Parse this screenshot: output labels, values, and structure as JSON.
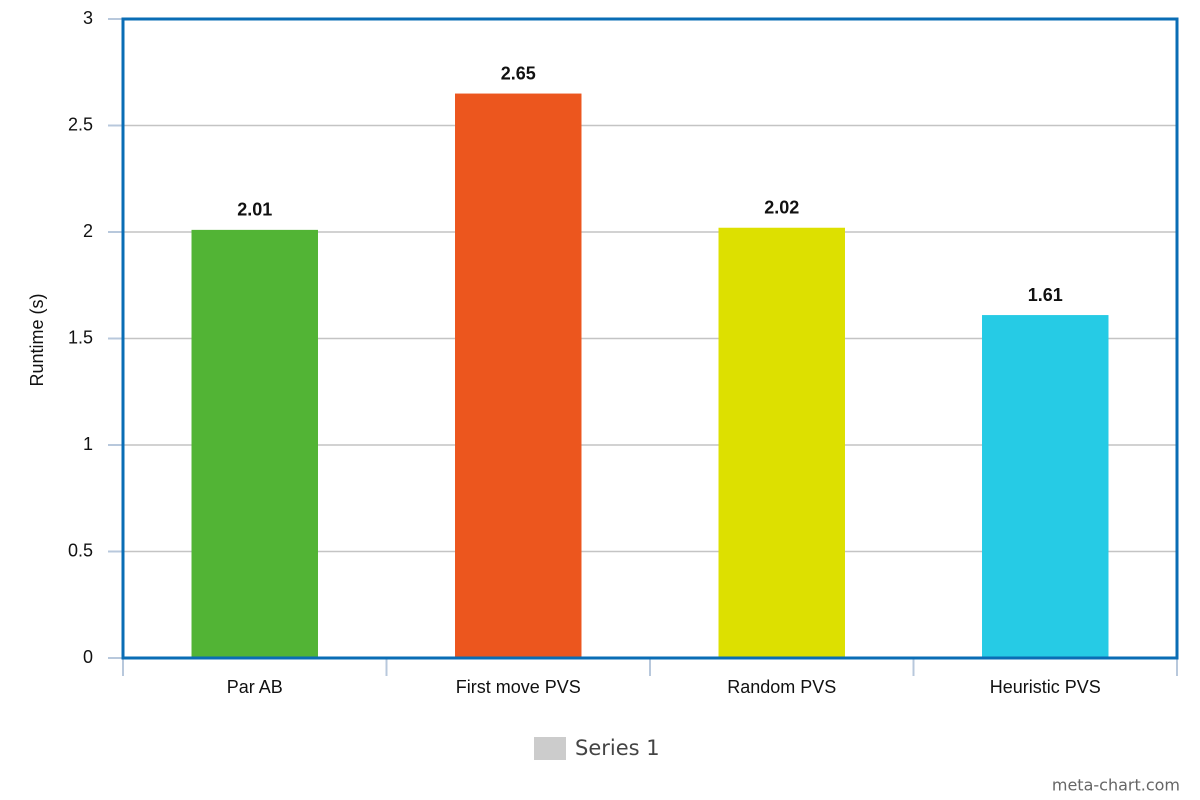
{
  "chart_data": {
    "type": "bar",
    "y_label": "Runtime (s)",
    "categories": [
      "Par AB",
      "First move PVS",
      "Random PVS",
      "Heuristic PVS"
    ],
    "series": [
      {
        "name": "Series 1",
        "color": "#cccccc",
        "colors": [
          "#52b435",
          "#ec561e",
          "#dde000",
          "#26cbe5"
        ],
        "values": [
          2.01,
          2.65,
          2.02,
          1.61
        ]
      }
    ],
    "ylim": [
      0,
      3
    ],
    "yticks": [
      0,
      0.5,
      1,
      1.5,
      2,
      2.5,
      3
    ],
    "grid": true,
    "legend": "bottom",
    "watermark": "meta-chart.com"
  }
}
